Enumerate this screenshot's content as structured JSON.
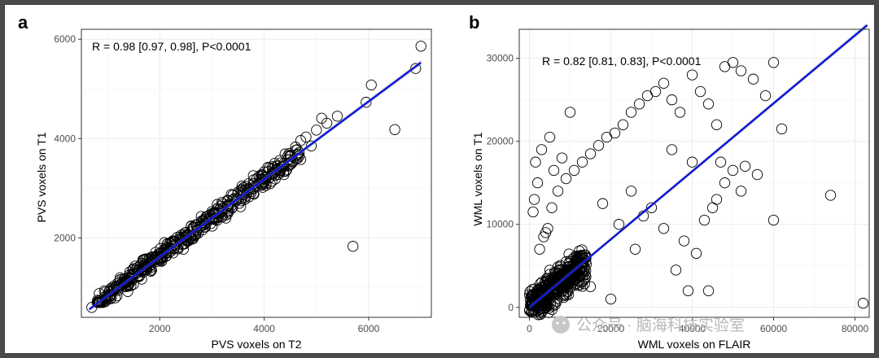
{
  "panels": {
    "a": {
      "letter": "a",
      "annotation": "R = 0.98 [0.97, 0.98], P<0.0001",
      "xlabel": "PVS voxels on T2",
      "ylabel": "PVS voxels on T1",
      "x_ticks": [
        "2000",
        "4000",
        "6000"
      ],
      "y_ticks": [
        "2000",
        "4000",
        "6000"
      ]
    },
    "b": {
      "letter": "b",
      "annotation": "R = 0.82 [0.81, 0.83], P<0.0001",
      "xlabel": "WML voxels on FLAIR",
      "ylabel": "WML voxels on T1",
      "x_ticks": [
        "0",
        "20000",
        "40000",
        "60000",
        "80000"
      ],
      "y_ticks": [
        "0",
        "10000",
        "20000",
        "30000"
      ]
    }
  },
  "watermark": "公众号 · 脑海科技实验室",
  "colors": {
    "fit_line": "#0a14d8",
    "points": "#000000",
    "grid": "#ebebeb",
    "panel_border": "#333333"
  },
  "chart_data": [
    {
      "type": "scatter",
      "xlabel": "PVS voxels on T2",
      "ylabel": "PVS voxels on T1",
      "xlim": [
        500,
        7200
      ],
      "ylim": [
        400,
        6200
      ],
      "x_ticks": [
        2000,
        4000,
        6000
      ],
      "y_ticks": [
        2000,
        4000,
        6000
      ],
      "grid": true,
      "annotation": "R = 0.98 [0.97, 0.98], P<0.0001",
      "fit_line": {
        "x": [
          650,
          7000
        ],
        "y": [
          560,
          5530
        ]
      },
      "points": {
        "x": [
          700,
          900,
          1100,
          1300,
          1500,
          1700,
          1900,
          2100,
          2300,
          2500,
          2700,
          2900,
          3100,
          3300,
          3500,
          3700,
          3900,
          4100,
          4300,
          1000,
          1400,
          1800,
          2200,
          2600,
          3000,
          3400,
          3800,
          4200,
          2400,
          2800,
          3200,
          3600,
          4000,
          4400,
          4600,
          4800,
          5000,
          5200,
          5400,
          5700,
          5950,
          6050,
          6500,
          6900,
          7000,
          4900,
          5100,
          1600,
          2000,
          3000
        ],
        "y": [
          600,
          760,
          940,
          1110,
          1270,
          1440,
          1610,
          1780,
          1930,
          2110,
          2270,
          2420,
          2590,
          2760,
          2920,
          3090,
          3240,
          3410,
          3560,
          830,
          1200,
          1560,
          1900,
          2230,
          2530,
          2860,
          3170,
          3500,
          1980,
          2340,
          2680,
          3010,
          3330,
          3690,
          3830,
          4030,
          4170,
          4310,
          4450,
          1830,
          4730,
          5080,
          4180,
          5410,
          5860,
          3850,
          4410,
          1350,
          1690,
          2390
        ]
      },
      "point_cloud": {
        "x_range": [
          800,
          4700
        ],
        "slope": 0.782,
        "intercept": 52,
        "spread": 130
      }
    },
    {
      "type": "scatter",
      "xlabel": "WML voxels on FLAIR",
      "ylabel": "WML voxels on T1",
      "xlim": [
        -2500,
        83500
      ],
      "ylim": [
        -1200,
        33500
      ],
      "x_ticks": [
        0,
        20000,
        40000,
        60000,
        80000
      ],
      "y_ticks": [
        0,
        10000,
        20000,
        30000
      ],
      "grid": true,
      "annotation": "R = 0.82 [0.81, 0.83], P<0.0001",
      "fit_line": {
        "x": [
          0,
          83000
        ],
        "y": [
          0,
          34000
        ]
      },
      "points": {
        "x": [
          2500,
          4000,
          5500,
          7000,
          9000,
          11000,
          13000,
          15000,
          17000,
          19000,
          21000,
          23000,
          25000,
          27000,
          29000,
          31000,
          33000,
          35000,
          37000,
          40000,
          42000,
          44000,
          46000,
          48000,
          50000,
          52000,
          55000,
          58000,
          60000,
          62000,
          48000,
          52000,
          56000,
          45000,
          43000,
          38000,
          41000,
          60000,
          74000,
          82000,
          47000,
          50000,
          53000,
          30000,
          33000,
          36000,
          39000,
          10000,
          15000,
          20000,
          18000,
          22000,
          26000,
          8000,
          12000,
          25000,
          28000,
          35000,
          40000,
          46000,
          44000
        ],
        "y": [
          7000,
          9000,
          12000,
          14000,
          15500,
          16500,
          17500,
          18500,
          19500,
          20500,
          21000,
          22000,
          23500,
          24500,
          25500,
          26000,
          27000,
          25000,
          23500,
          28000,
          26000,
          24500,
          22000,
          29000,
          29500,
          28500,
          27500,
          25500,
          29500,
          21500,
          15000,
          14000,
          16000,
          12000,
          10500,
          8000,
          6500,
          10500,
          13500,
          500,
          17500,
          16500,
          17000,
          12000,
          9500,
          4500,
          2000,
          23500,
          2500,
          1000,
          12500,
          10000,
          7000,
          4500,
          6000,
          14000,
          11000,
          19000,
          17500,
          13000,
          2000
        ],
        "x2": [
          1500,
          3000,
          5000,
          6000,
          8000,
          1200,
          2000,
          3500,
          4500,
          900
        ],
        "y2": [
          17500,
          19000,
          20500,
          16500,
          18000,
          13000,
          15000,
          8500,
          9500,
          11500
        ]
      },
      "point_cloud": {
        "x_range": [
          0,
          14000
        ],
        "slope": 0.39,
        "intercept": 0,
        "spread": 1500
      }
    }
  ]
}
